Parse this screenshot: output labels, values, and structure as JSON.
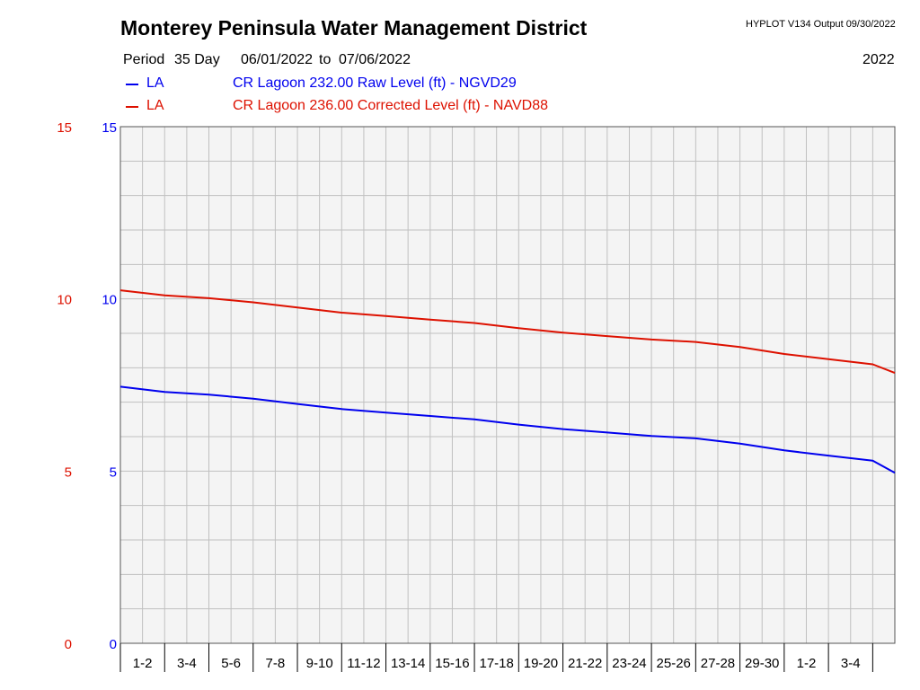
{
  "header": {
    "title": "Monterey Peninsula Water Management District",
    "program": "HYPLOT V134  Output 09/30/2022",
    "period_label": "Period",
    "period_days": "35 Day",
    "date_start": "06/01/2022",
    "date_to": "to",
    "date_end": "07/06/2022",
    "year": "2022"
  },
  "legend": [
    {
      "code": "LA",
      "description": "CR Lagoon  232.00 Raw Level (ft) - NGVD29",
      "color": "#0000ee"
    },
    {
      "code": "LA",
      "description": "CR Lagoon  236.00 Corrected Level (ft) - NAVD88",
      "color": "#dd1100"
    }
  ],
  "colors": {
    "plot_background": "#f4f4f4",
    "grid": "#c0c0c0",
    "raw_series": "#0000ee",
    "corrected_series": "#dd1100"
  },
  "chart_data": {
    "type": "line",
    "title": "Monterey Peninsula Water Management District",
    "xlabel": "",
    "ylabel": "",
    "x_tick_labels": [
      "1-2",
      "3-4",
      "5-6",
      "7-8",
      "9-10",
      "11-12",
      "13-14",
      "15-16",
      "17-18",
      "19-20",
      "21-22",
      "23-24",
      "25-26",
      "27-28",
      "29-30",
      "1-2",
      "3-4"
    ],
    "xlim": [
      "06/01/2022",
      "07/06/2022"
    ],
    "ylim": [
      0,
      15
    ],
    "y_ticks": [
      0,
      5,
      10,
      15
    ],
    "grid": true,
    "series": [
      {
        "name": "CR Lagoon  232.00 Raw Level (ft) - NGVD29",
        "axis": "left-inner",
        "color": "#0000ee",
        "x": [
          "06/01/2022",
          "06/03/2022",
          "06/05/2022",
          "06/07/2022",
          "06/09/2022",
          "06/11/2022",
          "06/13/2022",
          "06/15/2022",
          "06/17/2022",
          "06/19/2022",
          "06/21/2022",
          "06/23/2022",
          "06/25/2022",
          "06/27/2022",
          "06/29/2022",
          "07/01/2022",
          "07/03/2022",
          "07/05/2022",
          "07/06/2022"
        ],
        "values": [
          7.45,
          7.3,
          7.22,
          7.1,
          6.95,
          6.8,
          6.7,
          6.6,
          6.5,
          6.35,
          6.22,
          6.12,
          6.02,
          5.95,
          5.8,
          5.6,
          5.45,
          5.3,
          4.95
        ]
      },
      {
        "name": "CR Lagoon  236.00 Corrected Level (ft) - NAVD88",
        "axis": "left-outer",
        "color": "#dd1100",
        "x": [
          "06/01/2022",
          "06/03/2022",
          "06/05/2022",
          "06/07/2022",
          "06/09/2022",
          "06/11/2022",
          "06/13/2022",
          "06/15/2022",
          "06/17/2022",
          "06/19/2022",
          "06/21/2022",
          "06/23/2022",
          "06/25/2022",
          "06/27/2022",
          "06/29/2022",
          "07/01/2022",
          "07/03/2022",
          "07/05/2022",
          "07/06/2022"
        ],
        "values": [
          10.25,
          10.1,
          10.02,
          9.9,
          9.75,
          9.6,
          9.5,
          9.4,
          9.3,
          9.15,
          9.02,
          8.92,
          8.82,
          8.75,
          8.6,
          8.4,
          8.25,
          8.1,
          7.85
        ]
      }
    ]
  }
}
